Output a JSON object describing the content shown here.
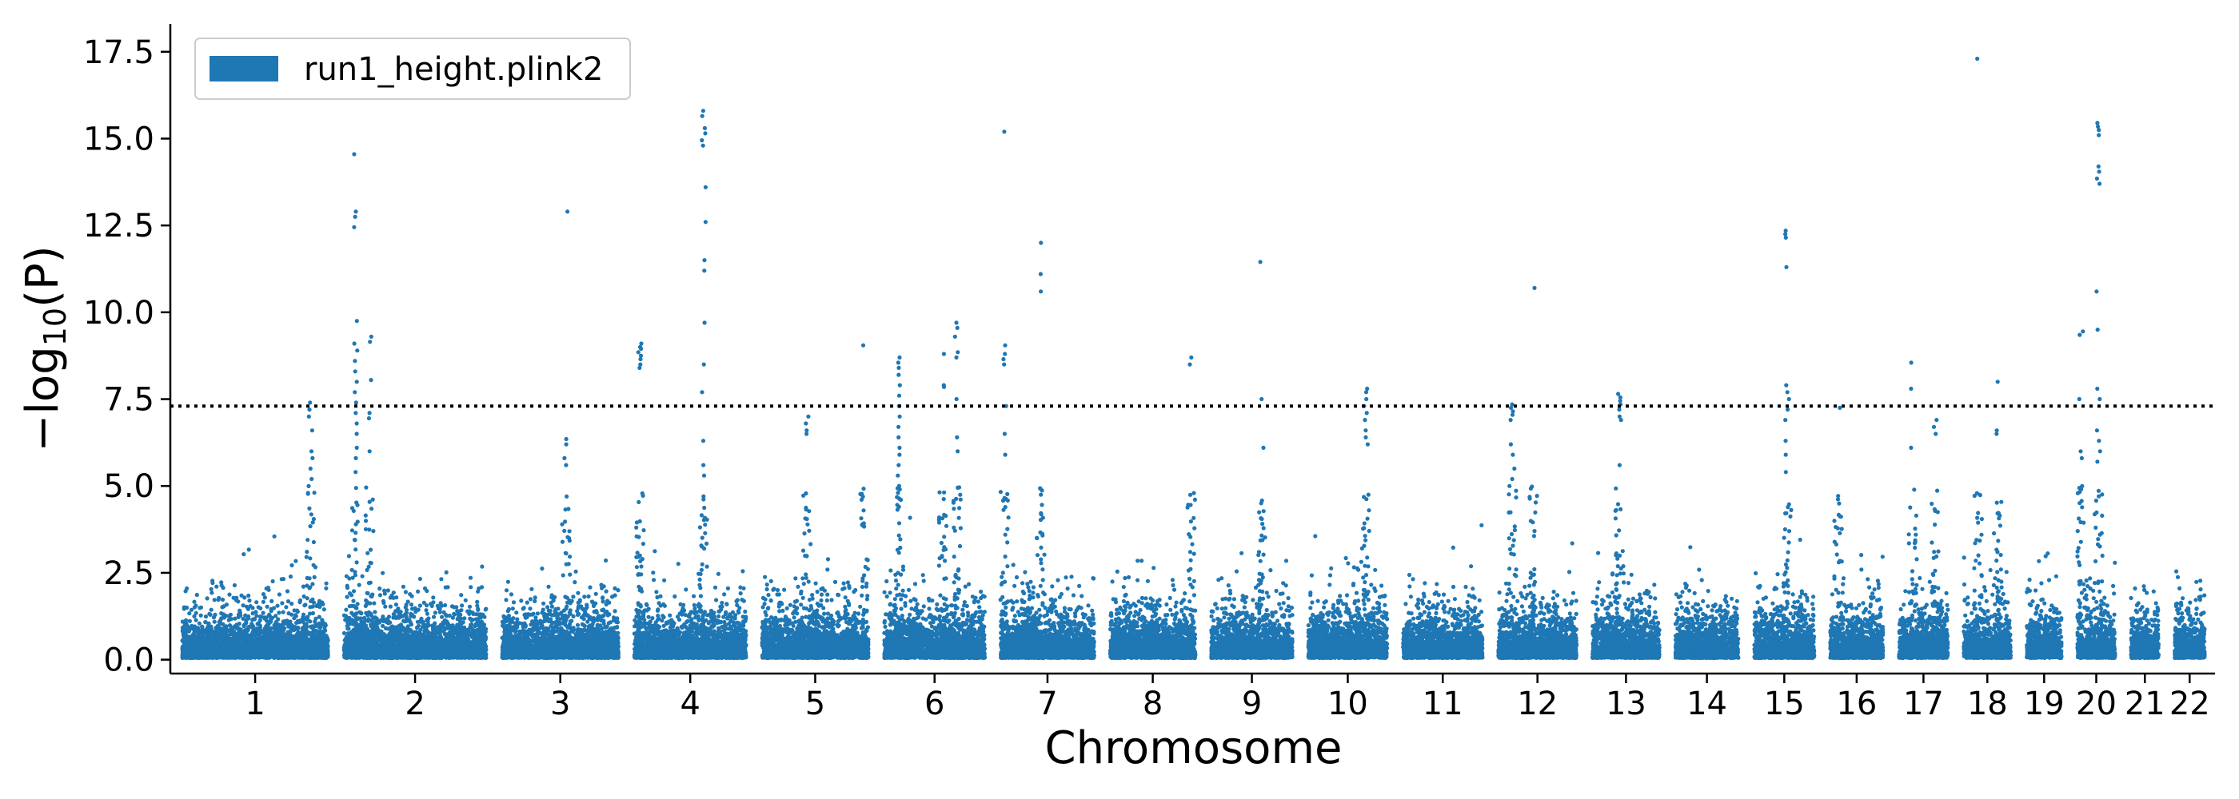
{
  "chart_data": {
    "type": "scatter",
    "subtype": "manhattan",
    "title": "",
    "xlabel": "Chromosome",
    "ylabel": "−log10(P)",
    "ylabel_main": "−log",
    "ylabel_sub": "10",
    "ylabel_tail": "(P)",
    "ylim": [
      -0.4,
      18.3
    ],
    "yticks": [
      "0.0",
      "2.5",
      "5.0",
      "7.5",
      "10.0",
      "12.5",
      "15.0",
      "17.5"
    ],
    "threshold": 7.3,
    "threshold_style": "dotted",
    "grid": false,
    "legend": {
      "placement": "top-left",
      "entries": [
        "run1_height.plink2"
      ]
    },
    "series": [
      {
        "name": "run1_height.plink2",
        "color": "#1f77b4"
      }
    ],
    "chromosomes": [
      {
        "label": "1",
        "size": 248
      },
      {
        "label": "2",
        "size": 242
      },
      {
        "label": "3",
        "size": 198
      },
      {
        "label": "4",
        "size": 190
      },
      {
        "label": "5",
        "size": 181
      },
      {
        "label": "6",
        "size": 171
      },
      {
        "label": "7",
        "size": 159
      },
      {
        "label": "8",
        "size": 145
      },
      {
        "label": "9",
        "size": 138
      },
      {
        "label": "10",
        "size": 134
      },
      {
        "label": "11",
        "size": 135
      },
      {
        "label": "12",
        "size": 133
      },
      {
        "label": "13",
        "size": 114
      },
      {
        "label": "14",
        "size": 107
      },
      {
        "label": "15",
        "size": 102
      },
      {
        "label": "16",
        "size": 90
      },
      {
        "label": "17",
        "size": 83
      },
      {
        "label": "18",
        "size": 80
      },
      {
        "label": "19",
        "size": 59
      },
      {
        "label": "20",
        "size": 64
      },
      {
        "label": "21",
        "size": 47
      },
      {
        "label": "22",
        "size": 51
      }
    ],
    "peaks": [
      {
        "chr": "1",
        "pos": 0.88,
        "values": [
          7.4,
          7.2,
          7.0,
          6.6,
          6.0,
          5.8,
          5.5,
          5.2
        ]
      },
      {
        "chr": "2",
        "pos": 0.08,
        "values": [
          14.55,
          12.9,
          12.75,
          12.45,
          9.75,
          9.1,
          8.9,
          8.6,
          8.3,
          8.0,
          7.7,
          7.4,
          7.1,
          6.8,
          6.5,
          6.1,
          5.8,
          5.4
        ]
      },
      {
        "chr": "2",
        "pos": 0.18,
        "values": [
          9.3,
          9.15,
          8.05,
          7.1,
          6.95,
          6.0
        ]
      },
      {
        "chr": "3",
        "pos": 0.55,
        "values": [
          12.9,
          6.35,
          6.2,
          5.8,
          5.6
        ]
      },
      {
        "chr": "4",
        "pos": 0.05,
        "values": [
          9.1,
          9.0,
          8.95,
          8.85,
          8.75,
          8.65,
          8.5,
          8.4
        ]
      },
      {
        "chr": "4",
        "pos": 0.62,
        "values": [
          15.8,
          15.65,
          15.3,
          15.15,
          14.95,
          14.8,
          13.6,
          12.6,
          11.5,
          11.2,
          9.7,
          8.5,
          7.7,
          6.3,
          5.6,
          5.3
        ]
      },
      {
        "chr": "5",
        "pos": 0.42,
        "values": [
          7.0,
          6.8,
          6.6,
          6.5
        ]
      },
      {
        "chr": "5",
        "pos": 0.96,
        "values": [
          9.05
        ]
      },
      {
        "chr": "6",
        "pos": 0.15,
        "values": [
          8.7,
          8.55,
          8.4,
          8.2,
          7.9,
          7.6,
          7.3,
          7.0,
          6.7,
          6.4,
          6.1,
          5.9,
          5.6,
          5.3,
          5.0,
          4.8,
          4.6,
          4.4
        ]
      },
      {
        "chr": "6",
        "pos": 0.58,
        "values": [
          8.8,
          7.9,
          7.85
        ]
      },
      {
        "chr": "6",
        "pos": 0.72,
        "values": [
          9.7,
          9.55,
          9.3,
          8.85,
          8.7,
          7.5,
          6.4,
          6.0
        ]
      },
      {
        "chr": "7",
        "pos": 0.04,
        "values": [
          15.2,
          9.05,
          8.8,
          8.65,
          8.5,
          7.3,
          6.5,
          5.9
        ]
      },
      {
        "chr": "7",
        "pos": 0.42,
        "values": [
          12.0,
          11.1,
          10.6
        ]
      },
      {
        "chr": "8",
        "pos": 0.95,
        "values": [
          8.7,
          8.5
        ]
      },
      {
        "chr": "9",
        "pos": 0.62,
        "values": [
          11.45,
          7.5,
          6.1
        ]
      },
      {
        "chr": "10",
        "pos": 0.73,
        "values": [
          7.8,
          7.7,
          7.5,
          7.3,
          7.1,
          6.9,
          6.6,
          6.4,
          6.2
        ]
      },
      {
        "chr": "12",
        "pos": 0.18,
        "values": [
          7.35,
          7.25,
          7.15,
          7.05,
          6.9,
          6.2,
          5.9,
          5.5,
          5.2
        ]
      },
      {
        "chr": "12",
        "pos": 0.45,
        "values": [
          10.7
        ]
      },
      {
        "chr": "13",
        "pos": 0.4,
        "values": [
          7.65,
          7.55,
          7.45,
          7.35,
          7.2,
          7.0,
          6.9,
          5.6
        ]
      },
      {
        "chr": "15",
        "pos": 0.55,
        "values": [
          12.35,
          12.25,
          12.15,
          11.3,
          7.9,
          7.7,
          7.5,
          7.2,
          6.9,
          6.3,
          5.9,
          5.4
        ]
      },
      {
        "chr": "16",
        "pos": 0.15,
        "values": [
          7.25
        ]
      },
      {
        "chr": "17",
        "pos": 0.28,
        "values": [
          8.55,
          7.8,
          6.1
        ]
      },
      {
        "chr": "17",
        "pos": 0.75,
        "values": [
          6.9,
          6.7,
          6.5
        ]
      },
      {
        "chr": "18",
        "pos": 0.3,
        "values": [
          17.3
        ]
      },
      {
        "chr": "18",
        "pos": 0.72,
        "values": [
          8.0,
          6.6,
          6.5
        ]
      },
      {
        "chr": "20",
        "pos": 0.1,
        "values": [
          9.45,
          9.35,
          7.5,
          6.0,
          5.8
        ]
      },
      {
        "chr": "20",
        "pos": 0.55,
        "values": [
          15.45,
          15.35,
          15.25,
          15.1,
          14.2,
          14.05,
          13.85,
          13.7,
          10.6,
          9.5,
          7.8,
          7.5,
          6.6,
          6.3,
          6.0,
          5.7
        ]
      }
    ]
  }
}
